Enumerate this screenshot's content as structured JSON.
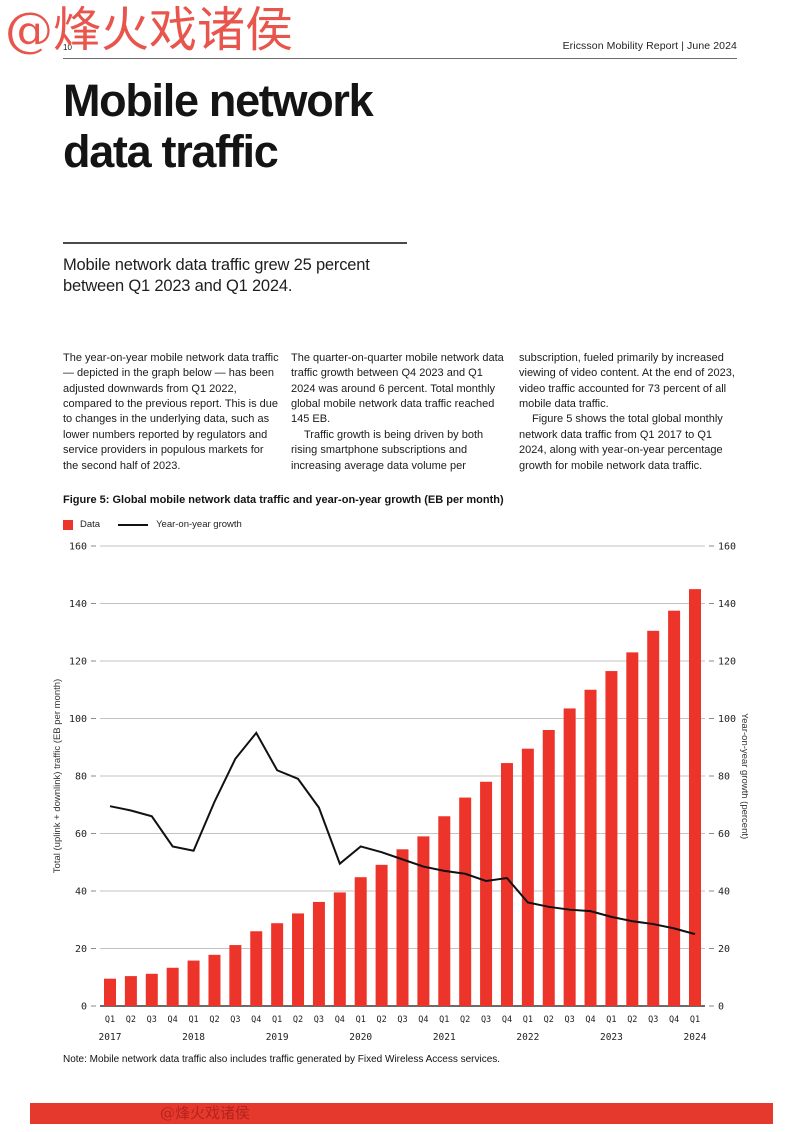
{
  "watermark": {
    "text": "@烽火戏诸侯",
    "color": "#e8554c"
  },
  "header": {
    "page_number": "10",
    "right_text": "Ericsson Mobility Report  |  June 2024"
  },
  "title": {
    "line1": "Mobile network",
    "line2": "data traffic"
  },
  "lede": "Mobile network data traffic grew 25 percent between Q1 2023 and Q1 2024.",
  "body": {
    "col1": [
      "The year-on-year mobile network data traffic — depicted in the graph below — has been adjusted downwards from Q1 2022, compared to the previous report. This is due to changes in the underlying data, such as lower numbers reported by regulators and service providers in populous markets for the second half of 2023."
    ],
    "col2": [
      "The quarter-on-quarter mobile network data traffic growth between Q4 2023 and Q1 2024 was around 6 percent. Total monthly global mobile network data traffic reached 145 EB.",
      "Traffic growth is being driven by both rising smartphone subscriptions and increasing average data volume per"
    ],
    "col3": [
      "subscription, fueled primarily by increased viewing of video content. At the end of 2023, video traffic accounted for 73 percent of all mobile data traffic.",
      "Figure 5 shows the total global monthly network data traffic from Q1 2017 to Q1 2024, along with year-on-year percentage growth for mobile network data traffic."
    ]
  },
  "figure": {
    "caption": "Figure 5: Global mobile network data traffic and year-on-year growth (EB per month)",
    "legend": [
      {
        "label": "Data",
        "type": "swatch",
        "color": "#ed342b"
      },
      {
        "label": "Year-on-year growth",
        "type": "line",
        "color": "#111111"
      }
    ]
  },
  "note": "Note: Mobile network data traffic also includes traffic generated by Fixed Wireless Access services.",
  "footer": {
    "text": "@烽火戏诸侯",
    "color": "#e6392e"
  },
  "chart_data": {
    "type": "bar+line",
    "title": "Figure 5: Global mobile network data traffic and year-on-year growth (EB per month)",
    "categories": [
      "Q1",
      "Q2",
      "Q3",
      "Q4",
      "Q1",
      "Q2",
      "Q3",
      "Q4",
      "Q1",
      "Q2",
      "Q3",
      "Q4",
      "Q1",
      "Q2",
      "Q3",
      "Q4",
      "Q1",
      "Q2",
      "Q3",
      "Q4",
      "Q1",
      "Q2",
      "Q3",
      "Q4",
      "Q1",
      "Q2",
      "Q3",
      "Q4",
      "Q1"
    ],
    "year_labels": [
      "2017",
      "2018",
      "2019",
      "2020",
      "2021",
      "2022",
      "2023",
      "2024"
    ],
    "series": [
      {
        "name": "Data",
        "type": "bar",
        "color": "#ed342b",
        "values": [
          9.5,
          10.4,
          11.2,
          13.3,
          15.8,
          17.8,
          21.2,
          26,
          28.8,
          32.2,
          36.2,
          39.5,
          44.8,
          49.1,
          54.5,
          59,
          66,
          72.5,
          78,
          84.5,
          89.5,
          96,
          103.5,
          110,
          116.5,
          123,
          130.5,
          137.5,
          145
        ]
      },
      {
        "name": "Year-on-year growth",
        "type": "line",
        "color": "#111111",
        "values": [
          69.5,
          68,
          66,
          55.5,
          54,
          71,
          86,
          95,
          82,
          79,
          69,
          49.5,
          55.5,
          53.5,
          51,
          48.5,
          47,
          46,
          43.5,
          44.5,
          36,
          34.5,
          33.5,
          33,
          31,
          29.5,
          28.5,
          27,
          25
        ]
      }
    ],
    "left_axis": {
      "label": "Total (uplink + downlink) traffic (EB per month)",
      "min": 0,
      "max": 160,
      "step": 20
    },
    "right_axis": {
      "label": "Year-on-year growth (percent)",
      "min": 0,
      "max": 160,
      "step": 20
    },
    "grid": true,
    "legend_position": "top-left"
  }
}
